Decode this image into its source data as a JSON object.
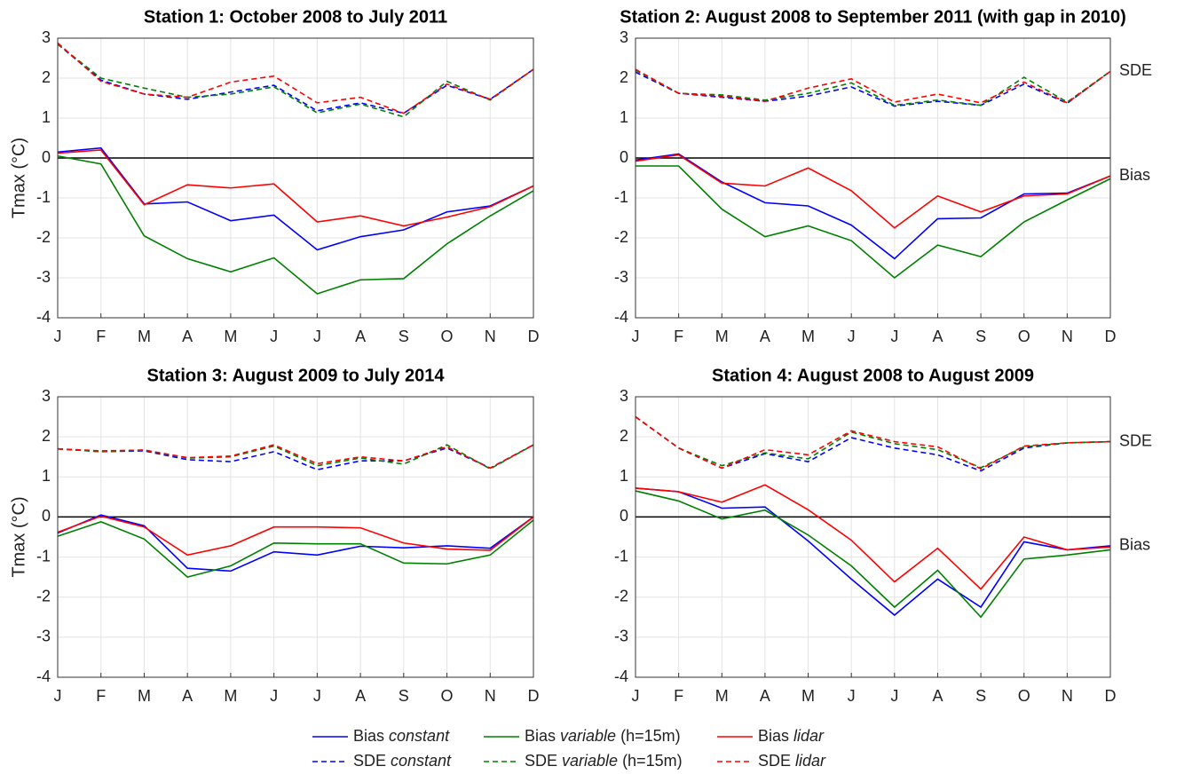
{
  "chart_data": [
    {
      "type": "line",
      "title": "Station 1: October 2008 to July 2011",
      "ylabel": "Tmax (°C)",
      "categories": [
        "J",
        "F",
        "M",
        "A",
        "M",
        "J",
        "J",
        "A",
        "S",
        "O",
        "N",
        "D"
      ],
      "ylim": [
        -4,
        3
      ],
      "yticks": [
        -4,
        -3,
        -2,
        -1,
        0,
        1,
        2,
        3
      ],
      "grid": true,
      "hline": 0,
      "series": [
        {
          "name": "Bias constant",
          "color": "#0000ff",
          "style": "solid",
          "values": [
            0.15,
            0.25,
            -1.15,
            -1.1,
            -1.57,
            -1.43,
            -2.3,
            -1.97,
            -1.8,
            -1.35,
            -1.2,
            -0.7
          ]
        },
        {
          "name": "Bias variable (h=15m)",
          "color": "#008000",
          "style": "solid",
          "values": [
            0.05,
            -0.15,
            -1.95,
            -2.52,
            -2.85,
            -2.5,
            -3.4,
            -3.05,
            -3.02,
            -2.15,
            -1.45,
            -0.82
          ]
        },
        {
          "name": "Bias lidar",
          "color": "#ff0000",
          "style": "solid",
          "values": [
            0.12,
            0.2,
            -1.17,
            -0.67,
            -0.75,
            -0.65,
            -1.6,
            -1.45,
            -1.7,
            -1.48,
            -1.22,
            -0.7
          ]
        },
        {
          "name": "SDE constant",
          "color": "#0000ff",
          "style": "dashed",
          "values": [
            2.85,
            1.95,
            1.6,
            1.47,
            1.65,
            1.82,
            1.18,
            1.38,
            1.12,
            1.82,
            1.47,
            2.22
          ]
        },
        {
          "name": "SDE variable (h=15m)",
          "color": "#008000",
          "style": "dashed",
          "values": [
            2.85,
            2.0,
            1.75,
            1.52,
            1.6,
            1.78,
            1.13,
            1.35,
            1.03,
            1.92,
            1.45,
            2.22
          ]
        },
        {
          "name": "SDE lidar",
          "color": "#ff0000",
          "style": "dashed",
          "values": [
            2.88,
            1.92,
            1.6,
            1.52,
            1.9,
            2.05,
            1.38,
            1.52,
            1.12,
            1.85,
            1.47,
            2.22
          ]
        }
      ]
    },
    {
      "type": "line",
      "title": "Station 2: August 2008 to September 2011 (with gap in 2010)",
      "categories": [
        "J",
        "F",
        "M",
        "A",
        "M",
        "J",
        "J",
        "A",
        "S",
        "O",
        "N",
        "D"
      ],
      "ylim": [
        -4,
        3
      ],
      "yticks": [
        -4,
        -3,
        -2,
        -1,
        0,
        1,
        2,
        3
      ],
      "grid": true,
      "hline": 0,
      "annotations": [
        "SDE",
        "Bias"
      ],
      "series": [
        {
          "name": "Bias constant",
          "color": "#0000ff",
          "style": "solid",
          "values": [
            -0.05,
            0.1,
            -0.6,
            -1.12,
            -1.2,
            -1.68,
            -2.52,
            -1.52,
            -1.5,
            -0.9,
            -0.88,
            -0.45
          ]
        },
        {
          "name": "Bias variable (h=15m)",
          "color": "#008000",
          "style": "solid",
          "values": [
            -0.2,
            -0.2,
            -1.28,
            -1.97,
            -1.7,
            -2.07,
            -3.0,
            -2.18,
            -2.47,
            -1.6,
            -1.05,
            -0.52
          ]
        },
        {
          "name": "Bias lidar",
          "color": "#ff0000",
          "style": "solid",
          "values": [
            -0.08,
            0.08,
            -0.63,
            -0.7,
            -0.25,
            -0.82,
            -1.75,
            -0.95,
            -1.35,
            -0.95,
            -0.9,
            -0.45
          ]
        },
        {
          "name": "SDE constant",
          "color": "#0000ff",
          "style": "dashed",
          "values": [
            2.15,
            1.62,
            1.52,
            1.42,
            1.55,
            1.78,
            1.3,
            1.42,
            1.32,
            1.85,
            1.37,
            2.17
          ]
        },
        {
          "name": "SDE variable (h=15m)",
          "color": "#008000",
          "style": "dashed",
          "values": [
            2.2,
            1.62,
            1.58,
            1.45,
            1.62,
            1.88,
            1.32,
            1.45,
            1.32,
            2.02,
            1.4,
            2.17
          ]
        },
        {
          "name": "SDE lidar",
          "color": "#ff0000",
          "style": "dashed",
          "values": [
            2.22,
            1.62,
            1.55,
            1.42,
            1.75,
            1.98,
            1.4,
            1.6,
            1.38,
            1.9,
            1.38,
            2.17
          ]
        }
      ]
    },
    {
      "type": "line",
      "title": "Station 3: August 2009 to July 2014",
      "ylabel": "Tmax (°C)",
      "categories": [
        "J",
        "F",
        "M",
        "A",
        "M",
        "J",
        "J",
        "A",
        "S",
        "O",
        "N",
        "D"
      ],
      "ylim": [
        -4,
        3
      ],
      "yticks": [
        -4,
        -3,
        -2,
        -1,
        0,
        1,
        2,
        3
      ],
      "grid": true,
      "hline": 0,
      "series": [
        {
          "name": "Bias constant",
          "color": "#0000ff",
          "style": "solid",
          "values": [
            -0.4,
            0.05,
            -0.22,
            -1.28,
            -1.35,
            -0.87,
            -0.95,
            -0.73,
            -0.77,
            -0.72,
            -0.78,
            0.0
          ]
        },
        {
          "name": "Bias variable (h=15m)",
          "color": "#008000",
          "style": "solid",
          "values": [
            -0.48,
            -0.12,
            -0.55,
            -1.5,
            -1.22,
            -0.65,
            -0.67,
            -0.67,
            -1.15,
            -1.17,
            -0.95,
            -0.08
          ]
        },
        {
          "name": "Bias lidar",
          "color": "#ff0000",
          "style": "solid",
          "values": [
            -0.38,
            0.02,
            -0.25,
            -0.95,
            -0.72,
            -0.25,
            -0.25,
            -0.27,
            -0.65,
            -0.8,
            -0.83,
            0.0
          ]
        },
        {
          "name": "SDE constant",
          "color": "#0000ff",
          "style": "dashed",
          "values": [
            1.7,
            1.63,
            1.65,
            1.43,
            1.38,
            1.63,
            1.18,
            1.4,
            1.4,
            1.72,
            1.22,
            1.8
          ]
        },
        {
          "name": "SDE variable (h=15m)",
          "color": "#008000",
          "style": "dashed",
          "values": [
            1.7,
            1.63,
            1.67,
            1.47,
            1.5,
            1.77,
            1.28,
            1.47,
            1.32,
            1.8,
            1.2,
            1.8
          ]
        },
        {
          "name": "SDE lidar",
          "color": "#ff0000",
          "style": "dashed",
          "values": [
            1.7,
            1.65,
            1.67,
            1.48,
            1.52,
            1.8,
            1.33,
            1.5,
            1.4,
            1.75,
            1.22,
            1.8
          ]
        }
      ]
    },
    {
      "type": "line",
      "title": "Station 4: August 2008 to August 2009",
      "categories": [
        "J",
        "F",
        "M",
        "A",
        "M",
        "J",
        "J",
        "A",
        "S",
        "O",
        "N",
        "D"
      ],
      "ylim": [
        -4,
        3
      ],
      "yticks": [
        -4,
        -3,
        -2,
        -1,
        0,
        1,
        2,
        3
      ],
      "grid": true,
      "hline": 0,
      "annotations": [
        "SDE",
        "Bias"
      ],
      "series": [
        {
          "name": "Bias constant",
          "color": "#0000ff",
          "style": "solid",
          "values": [
            0.72,
            0.63,
            0.22,
            0.25,
            -0.6,
            -1.55,
            -2.45,
            -1.55,
            -2.25,
            -0.62,
            -0.82,
            -0.72
          ]
        },
        {
          "name": "Bias variable (h=15m)",
          "color": "#008000",
          "style": "solid",
          "values": [
            0.65,
            0.4,
            -0.05,
            0.17,
            -0.45,
            -1.22,
            -2.25,
            -1.33,
            -2.5,
            -1.05,
            -0.95,
            -0.82
          ]
        },
        {
          "name": "Bias lidar",
          "color": "#ff0000",
          "style": "solid",
          "values": [
            0.72,
            0.63,
            0.37,
            0.8,
            0.18,
            -0.58,
            -1.62,
            -0.78,
            -1.8,
            -0.5,
            -0.82,
            -0.75
          ]
        },
        {
          "name": "SDE constant",
          "color": "#0000ff",
          "style": "dashed",
          "values": [
            2.5,
            1.72,
            1.22,
            1.58,
            1.38,
            1.98,
            1.72,
            1.55,
            1.15,
            1.72,
            1.85,
            1.88
          ]
        },
        {
          "name": "SDE variable (h=15m)",
          "color": "#008000",
          "style": "dashed",
          "values": [
            2.5,
            1.72,
            1.28,
            1.6,
            1.45,
            2.12,
            1.83,
            1.68,
            1.23,
            1.75,
            1.85,
            1.88
          ]
        },
        {
          "name": "SDE lidar",
          "color": "#ff0000",
          "style": "dashed",
          "values": [
            2.5,
            1.72,
            1.22,
            1.68,
            1.55,
            2.15,
            1.88,
            1.75,
            1.2,
            1.77,
            1.85,
            1.88
          ]
        }
      ]
    }
  ]
}
